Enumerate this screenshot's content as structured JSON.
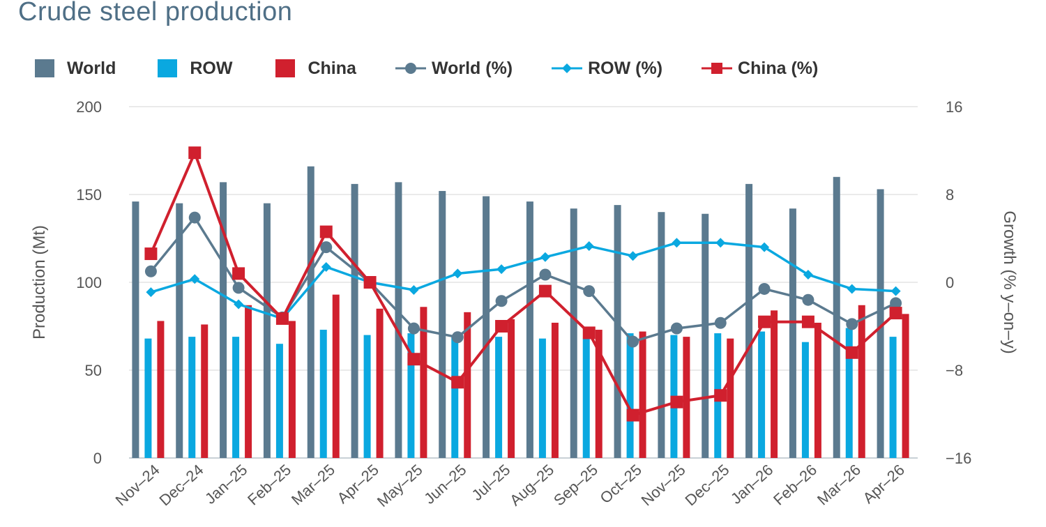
{
  "title": "Crude steel production",
  "legend": [
    {
      "label": "World",
      "kind": "bar",
      "color": "#5b7a8f"
    },
    {
      "label": "ROW",
      "kind": "bar",
      "color": "#0aa8e0"
    },
    {
      "label": "China",
      "kind": "bar",
      "color": "#d0202e"
    },
    {
      "label": "World (%)",
      "kind": "line-circle",
      "color": "#5b7a8f"
    },
    {
      "label": "ROW (%)",
      "kind": "line-diamond",
      "color": "#0aa8e0"
    },
    {
      "label": "China (%)",
      "kind": "line-square",
      "color": "#d0202e"
    }
  ],
  "chart_data": {
    "type": "bar",
    "title": "Crude steel production",
    "categories": [
      "Nov–24",
      "Dec–24",
      "Jan–25",
      "Feb–25",
      "Mar–25",
      "Apr–25",
      "May–25",
      "Jun–25",
      "Jul–25",
      "Aug–25",
      "Sep–25",
      "Oct–25",
      "Nov–25",
      "Dec–25",
      "Jan–26",
      "Feb–26",
      "Mar–26",
      "Apr–26"
    ],
    "ylabel": "Production (Mt)",
    "y2label": "Growth (% y–on–y)",
    "ylim": [
      0,
      200
    ],
    "y2lim": [
      -16,
      16
    ],
    "yticks": [
      "0",
      "50",
      "100",
      "150",
      "200"
    ],
    "y2ticks": [
      "−16",
      "−8",
      "0",
      "8",
      "16"
    ],
    "grid": true,
    "legend_position": "top",
    "series": [
      {
        "name": "World",
        "type": "bar",
        "color": "#5b7a8f",
        "axis": "left",
        "values": [
          146,
          145,
          157,
          145,
          166,
          156,
          157,
          152,
          149,
          146,
          142,
          144,
          140,
          139,
          156,
          142,
          160,
          153
        ]
      },
      {
        "name": "ROW",
        "type": "bar",
        "color": "#0aa8e0",
        "axis": "left",
        "values": [
          68,
          69,
          69,
          65,
          73,
          70,
          71,
          70,
          69,
          68,
          68,
          71,
          70,
          71,
          72,
          66,
          74,
          69
        ]
      },
      {
        "name": "China",
        "type": "bar",
        "color": "#d0202e",
        "axis": "left",
        "values": [
          78,
          76,
          87,
          78,
          93,
          85,
          86,
          83,
          79,
          77,
          73,
          72,
          69,
          68,
          84,
          77,
          87,
          82
        ]
      },
      {
        "name": "World (%)",
        "type": "line",
        "marker": "circle",
        "color": "#5b7a8f",
        "axis": "right",
        "values": [
          1.0,
          5.9,
          -0.5,
          -3.2,
          3.2,
          0.0,
          -4.2,
          -5.0,
          -1.7,
          0.7,
          -0.8,
          -5.4,
          -4.2,
          -3.7,
          -0.6,
          -1.6,
          -3.8,
          -1.9
        ]
      },
      {
        "name": "ROW (%)",
        "type": "line",
        "marker": "diamond",
        "color": "#0aa8e0",
        "axis": "right",
        "values": [
          -0.9,
          0.3,
          -2.0,
          -3.3,
          1.4,
          0.0,
          -0.7,
          0.8,
          1.2,
          2.3,
          3.3,
          2.4,
          3.6,
          3.6,
          3.2,
          0.7,
          -0.6,
          -0.8
        ]
      },
      {
        "name": "China (%)",
        "type": "line",
        "marker": "square",
        "color": "#d0202e",
        "axis": "right",
        "values": [
          2.6,
          11.8,
          0.8,
          -3.3,
          4.6,
          0.0,
          -7.0,
          -9.1,
          -4.0,
          -0.8,
          -4.6,
          -12.1,
          -10.9,
          -10.3,
          -3.6,
          -3.6,
          -6.4,
          -2.8
        ]
      }
    ]
  }
}
